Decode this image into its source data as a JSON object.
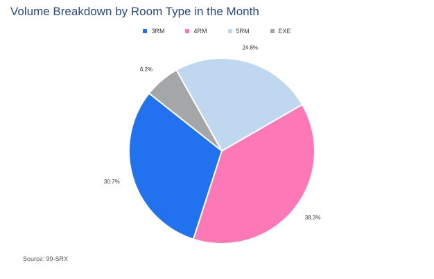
{
  "chart_data": {
    "type": "pie",
    "title": "Volume Breakdown by Room Type in the Month",
    "categories": [
      "3RM",
      "4RM",
      "5RM",
      "EXE"
    ],
    "values": [
      30.7,
      38.3,
      24.8,
      6.2
    ],
    "labels": [
      "30.7%",
      "38.3%",
      "24.8%",
      "6.2%"
    ],
    "colors": [
      "#2272f0",
      "#fd78b7",
      "#bfd8ef",
      "#a5a6a8"
    ],
    "legend_position": "top-center"
  },
  "source": "Source: 99-SRX"
}
